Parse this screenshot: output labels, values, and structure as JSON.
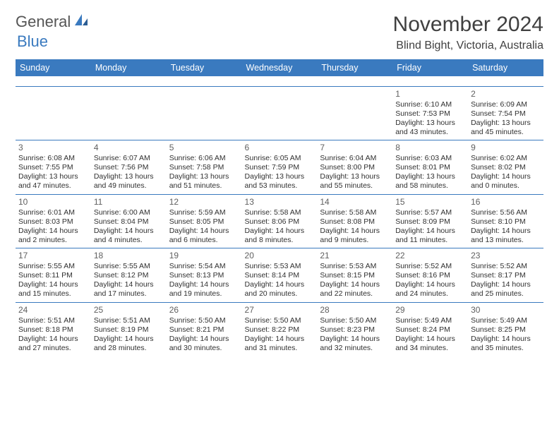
{
  "brand": {
    "part1": "General",
    "part2": "Blue"
  },
  "title": "November 2024",
  "location": "Blind Bight, Victoria, Australia",
  "colors": {
    "header_bg": "#3a7abf",
    "header_text": "#ffffff",
    "rule": "#3a7abf",
    "body_text": "#303030",
    "title_text": "#404040"
  },
  "day_headers": [
    "Sunday",
    "Monday",
    "Tuesday",
    "Wednesday",
    "Thursday",
    "Friday",
    "Saturday"
  ],
  "weeks": [
    [
      null,
      null,
      null,
      null,
      null,
      {
        "n": "1",
        "sunrise": "Sunrise: 6:10 AM",
        "sunset": "Sunset: 7:53 PM",
        "day": "Daylight: 13 hours and 43 minutes."
      },
      {
        "n": "2",
        "sunrise": "Sunrise: 6:09 AM",
        "sunset": "Sunset: 7:54 PM",
        "day": "Daylight: 13 hours and 45 minutes."
      }
    ],
    [
      {
        "n": "3",
        "sunrise": "Sunrise: 6:08 AM",
        "sunset": "Sunset: 7:55 PM",
        "day": "Daylight: 13 hours and 47 minutes."
      },
      {
        "n": "4",
        "sunrise": "Sunrise: 6:07 AM",
        "sunset": "Sunset: 7:56 PM",
        "day": "Daylight: 13 hours and 49 minutes."
      },
      {
        "n": "5",
        "sunrise": "Sunrise: 6:06 AM",
        "sunset": "Sunset: 7:58 PM",
        "day": "Daylight: 13 hours and 51 minutes."
      },
      {
        "n": "6",
        "sunrise": "Sunrise: 6:05 AM",
        "sunset": "Sunset: 7:59 PM",
        "day": "Daylight: 13 hours and 53 minutes."
      },
      {
        "n": "7",
        "sunrise": "Sunrise: 6:04 AM",
        "sunset": "Sunset: 8:00 PM",
        "day": "Daylight: 13 hours and 55 minutes."
      },
      {
        "n": "8",
        "sunrise": "Sunrise: 6:03 AM",
        "sunset": "Sunset: 8:01 PM",
        "day": "Daylight: 13 hours and 58 minutes."
      },
      {
        "n": "9",
        "sunrise": "Sunrise: 6:02 AM",
        "sunset": "Sunset: 8:02 PM",
        "day": "Daylight: 14 hours and 0 minutes."
      }
    ],
    [
      {
        "n": "10",
        "sunrise": "Sunrise: 6:01 AM",
        "sunset": "Sunset: 8:03 PM",
        "day": "Daylight: 14 hours and 2 minutes."
      },
      {
        "n": "11",
        "sunrise": "Sunrise: 6:00 AM",
        "sunset": "Sunset: 8:04 PM",
        "day": "Daylight: 14 hours and 4 minutes."
      },
      {
        "n": "12",
        "sunrise": "Sunrise: 5:59 AM",
        "sunset": "Sunset: 8:05 PM",
        "day": "Daylight: 14 hours and 6 minutes."
      },
      {
        "n": "13",
        "sunrise": "Sunrise: 5:58 AM",
        "sunset": "Sunset: 8:06 PM",
        "day": "Daylight: 14 hours and 8 minutes."
      },
      {
        "n": "14",
        "sunrise": "Sunrise: 5:58 AM",
        "sunset": "Sunset: 8:08 PM",
        "day": "Daylight: 14 hours and 9 minutes."
      },
      {
        "n": "15",
        "sunrise": "Sunrise: 5:57 AM",
        "sunset": "Sunset: 8:09 PM",
        "day": "Daylight: 14 hours and 11 minutes."
      },
      {
        "n": "16",
        "sunrise": "Sunrise: 5:56 AM",
        "sunset": "Sunset: 8:10 PM",
        "day": "Daylight: 14 hours and 13 minutes."
      }
    ],
    [
      {
        "n": "17",
        "sunrise": "Sunrise: 5:55 AM",
        "sunset": "Sunset: 8:11 PM",
        "day": "Daylight: 14 hours and 15 minutes."
      },
      {
        "n": "18",
        "sunrise": "Sunrise: 5:55 AM",
        "sunset": "Sunset: 8:12 PM",
        "day": "Daylight: 14 hours and 17 minutes."
      },
      {
        "n": "19",
        "sunrise": "Sunrise: 5:54 AM",
        "sunset": "Sunset: 8:13 PM",
        "day": "Daylight: 14 hours and 19 minutes."
      },
      {
        "n": "20",
        "sunrise": "Sunrise: 5:53 AM",
        "sunset": "Sunset: 8:14 PM",
        "day": "Daylight: 14 hours and 20 minutes."
      },
      {
        "n": "21",
        "sunrise": "Sunrise: 5:53 AM",
        "sunset": "Sunset: 8:15 PM",
        "day": "Daylight: 14 hours and 22 minutes."
      },
      {
        "n": "22",
        "sunrise": "Sunrise: 5:52 AM",
        "sunset": "Sunset: 8:16 PM",
        "day": "Daylight: 14 hours and 24 minutes."
      },
      {
        "n": "23",
        "sunrise": "Sunrise: 5:52 AM",
        "sunset": "Sunset: 8:17 PM",
        "day": "Daylight: 14 hours and 25 minutes."
      }
    ],
    [
      {
        "n": "24",
        "sunrise": "Sunrise: 5:51 AM",
        "sunset": "Sunset: 8:18 PM",
        "day": "Daylight: 14 hours and 27 minutes."
      },
      {
        "n": "25",
        "sunrise": "Sunrise: 5:51 AM",
        "sunset": "Sunset: 8:19 PM",
        "day": "Daylight: 14 hours and 28 minutes."
      },
      {
        "n": "26",
        "sunrise": "Sunrise: 5:50 AM",
        "sunset": "Sunset: 8:21 PM",
        "day": "Daylight: 14 hours and 30 minutes."
      },
      {
        "n": "27",
        "sunrise": "Sunrise: 5:50 AM",
        "sunset": "Sunset: 8:22 PM",
        "day": "Daylight: 14 hours and 31 minutes."
      },
      {
        "n": "28",
        "sunrise": "Sunrise: 5:50 AM",
        "sunset": "Sunset: 8:23 PM",
        "day": "Daylight: 14 hours and 32 minutes."
      },
      {
        "n": "29",
        "sunrise": "Sunrise: 5:49 AM",
        "sunset": "Sunset: 8:24 PM",
        "day": "Daylight: 14 hours and 34 minutes."
      },
      {
        "n": "30",
        "sunrise": "Sunrise: 5:49 AM",
        "sunset": "Sunset: 8:25 PM",
        "day": "Daylight: 14 hours and 35 minutes."
      }
    ]
  ]
}
